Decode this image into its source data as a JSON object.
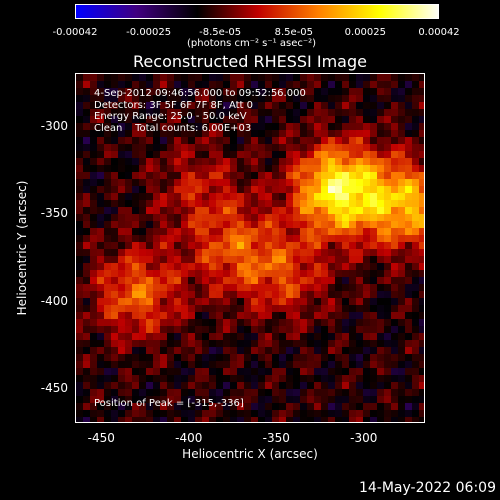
{
  "colorbar": {
    "ticks": [
      "-0.00042",
      "-0.00025",
      "-8.5e-05",
      "8.5e-05",
      "0.00025",
      "0.00042"
    ],
    "units": "(photons cm⁻² s⁻¹ asec⁻²)",
    "range": [
      -0.00042,
      0.00042
    ],
    "colors": [
      "#0000ff",
      "#400080",
      "#000000",
      "#c00000",
      "#ff8000",
      "#ffff00",
      "#ffffff"
    ]
  },
  "chart_data": {
    "type": "heatmap",
    "title": "Reconstructed RHESSI Image",
    "xlabel": "Heliocentric X (arcsec)",
    "ylabel": "Heliocentric Y (arcsec)",
    "xlim": [
      -465,
      -265
    ],
    "ylim": [
      -470,
      -270
    ],
    "x_ticks": [
      "-450",
      "-400",
      "-350",
      "-300"
    ],
    "y_ticks": [
      "-300",
      "-350",
      "-400",
      "-450"
    ],
    "annotations": {
      "time": "4-Sep-2012 09:46:56.000 to 09:52:56.000",
      "detectors": "Detectors: 3F 5F 6F 7F 8F, Att 0",
      "energy": "Energy Range: 25.0 - 50.0 keV",
      "clean": "Clean    Total counts: 6.00E+03",
      "peak": "Position of Peak = [-315,-336]"
    },
    "peak_position": [
      -315,
      -336
    ],
    "emission_sources": [
      {
        "x": -315,
        "y": -336,
        "intensity": 0.00042
      },
      {
        "x": -275,
        "y": -345,
        "intensity": 0.0003
      },
      {
        "x": -430,
        "y": -395,
        "intensity": 0.00022
      },
      {
        "x": -375,
        "y": -370,
        "intensity": 0.00018
      },
      {
        "x": -345,
        "y": -385,
        "intensity": 0.00016
      },
      {
        "x": -395,
        "y": -335,
        "intensity": 0.00012
      }
    ]
  },
  "footer": "14-May-2022 06:09"
}
